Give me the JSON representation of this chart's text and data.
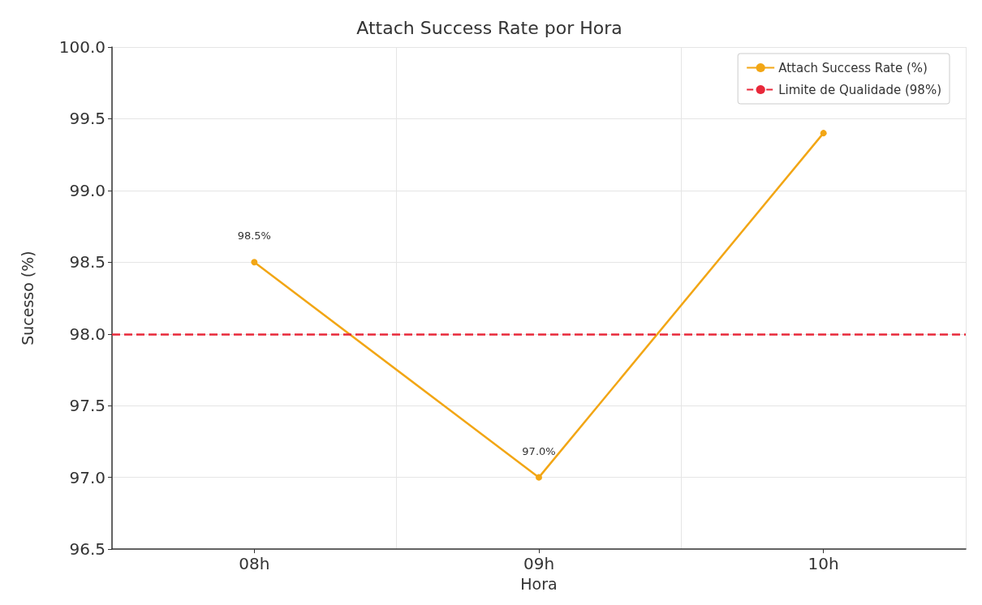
{
  "chart_data": {
    "type": "line",
    "title": "Attach Success Rate por Hora",
    "xlabel": "Hora",
    "ylabel": "Sucesso (%)",
    "categories": [
      "08h",
      "09h",
      "10h"
    ],
    "series": [
      {
        "name": "Attach Success Rate (%)",
        "color": "#f2a615",
        "values": [
          98.5,
          97.0,
          99.4
        ],
        "value_labels": [
          "98.5%",
          "97.0%",
          null
        ]
      }
    ],
    "ref_lines": [
      {
        "axis": "y",
        "value": 98,
        "label": "Limite de Qualidade (98%)",
        "color": "#e8283a",
        "line_style": "dashed"
      }
    ],
    "ylim": [
      96.5,
      100
    ],
    "yticks": [
      96.5,
      {
        "value": 97,
        "label": "97.0"
      },
      97.5,
      {
        "value": 98,
        "label": "98.0"
      },
      98.5,
      {
        "value": 99,
        "label": "99.0"
      },
      99.5,
      {
        "value": 100,
        "label": "100.0"
      }
    ],
    "grid": true,
    "legend": "top right",
    "marker": "circle",
    "line_style": "solid"
  }
}
